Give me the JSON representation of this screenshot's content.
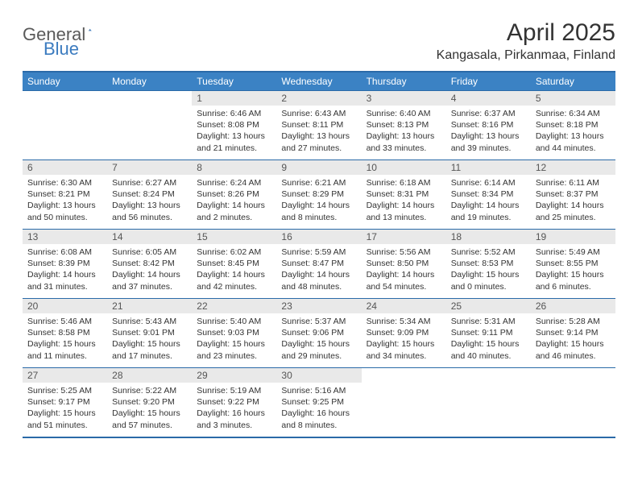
{
  "logo": {
    "text1": "General",
    "text2": "Blue"
  },
  "title": "April 2025",
  "location": "Kangasala, Pirkanmaa, Finland",
  "colors": {
    "header_bg": "#3b82c4",
    "header_text": "#ffffff",
    "border": "#2a6aa8",
    "daynum_bg": "#e9e9e9",
    "logo_gray": "#5a5a5a",
    "logo_blue": "#3b7bbf"
  },
  "day_labels": [
    "Sunday",
    "Monday",
    "Tuesday",
    "Wednesday",
    "Thursday",
    "Friday",
    "Saturday"
  ],
  "weeks": [
    [
      null,
      null,
      {
        "n": "1",
        "sr": "6:46 AM",
        "ss": "8:08 PM",
        "dl": "13 hours and 21 minutes."
      },
      {
        "n": "2",
        "sr": "6:43 AM",
        "ss": "8:11 PM",
        "dl": "13 hours and 27 minutes."
      },
      {
        "n": "3",
        "sr": "6:40 AM",
        "ss": "8:13 PM",
        "dl": "13 hours and 33 minutes."
      },
      {
        "n": "4",
        "sr": "6:37 AM",
        "ss": "8:16 PM",
        "dl": "13 hours and 39 minutes."
      },
      {
        "n": "5",
        "sr": "6:34 AM",
        "ss": "8:18 PM",
        "dl": "13 hours and 44 minutes."
      }
    ],
    [
      {
        "n": "6",
        "sr": "6:30 AM",
        "ss": "8:21 PM",
        "dl": "13 hours and 50 minutes."
      },
      {
        "n": "7",
        "sr": "6:27 AM",
        "ss": "8:24 PM",
        "dl": "13 hours and 56 minutes."
      },
      {
        "n": "8",
        "sr": "6:24 AM",
        "ss": "8:26 PM",
        "dl": "14 hours and 2 minutes."
      },
      {
        "n": "9",
        "sr": "6:21 AM",
        "ss": "8:29 PM",
        "dl": "14 hours and 8 minutes."
      },
      {
        "n": "10",
        "sr": "6:18 AM",
        "ss": "8:31 PM",
        "dl": "14 hours and 13 minutes."
      },
      {
        "n": "11",
        "sr": "6:14 AM",
        "ss": "8:34 PM",
        "dl": "14 hours and 19 minutes."
      },
      {
        "n": "12",
        "sr": "6:11 AM",
        "ss": "8:37 PM",
        "dl": "14 hours and 25 minutes."
      }
    ],
    [
      {
        "n": "13",
        "sr": "6:08 AM",
        "ss": "8:39 PM",
        "dl": "14 hours and 31 minutes."
      },
      {
        "n": "14",
        "sr": "6:05 AM",
        "ss": "8:42 PM",
        "dl": "14 hours and 37 minutes."
      },
      {
        "n": "15",
        "sr": "6:02 AM",
        "ss": "8:45 PM",
        "dl": "14 hours and 42 minutes."
      },
      {
        "n": "16",
        "sr": "5:59 AM",
        "ss": "8:47 PM",
        "dl": "14 hours and 48 minutes."
      },
      {
        "n": "17",
        "sr": "5:56 AM",
        "ss": "8:50 PM",
        "dl": "14 hours and 54 minutes."
      },
      {
        "n": "18",
        "sr": "5:52 AM",
        "ss": "8:53 PM",
        "dl": "15 hours and 0 minutes."
      },
      {
        "n": "19",
        "sr": "5:49 AM",
        "ss": "8:55 PM",
        "dl": "15 hours and 6 minutes."
      }
    ],
    [
      {
        "n": "20",
        "sr": "5:46 AM",
        "ss": "8:58 PM",
        "dl": "15 hours and 11 minutes."
      },
      {
        "n": "21",
        "sr": "5:43 AM",
        "ss": "9:01 PM",
        "dl": "15 hours and 17 minutes."
      },
      {
        "n": "22",
        "sr": "5:40 AM",
        "ss": "9:03 PM",
        "dl": "15 hours and 23 minutes."
      },
      {
        "n": "23",
        "sr": "5:37 AM",
        "ss": "9:06 PM",
        "dl": "15 hours and 29 minutes."
      },
      {
        "n": "24",
        "sr": "5:34 AM",
        "ss": "9:09 PM",
        "dl": "15 hours and 34 minutes."
      },
      {
        "n": "25",
        "sr": "5:31 AM",
        "ss": "9:11 PM",
        "dl": "15 hours and 40 minutes."
      },
      {
        "n": "26",
        "sr": "5:28 AM",
        "ss": "9:14 PM",
        "dl": "15 hours and 46 minutes."
      }
    ],
    [
      {
        "n": "27",
        "sr": "5:25 AM",
        "ss": "9:17 PM",
        "dl": "15 hours and 51 minutes."
      },
      {
        "n": "28",
        "sr": "5:22 AM",
        "ss": "9:20 PM",
        "dl": "15 hours and 57 minutes."
      },
      {
        "n": "29",
        "sr": "5:19 AM",
        "ss": "9:22 PM",
        "dl": "16 hours and 3 minutes."
      },
      {
        "n": "30",
        "sr": "5:16 AM",
        "ss": "9:25 PM",
        "dl": "16 hours and 8 minutes."
      },
      null,
      null,
      null
    ]
  ],
  "labels": {
    "sunrise": "Sunrise: ",
    "sunset": "Sunset: ",
    "daylight": "Daylight: "
  }
}
